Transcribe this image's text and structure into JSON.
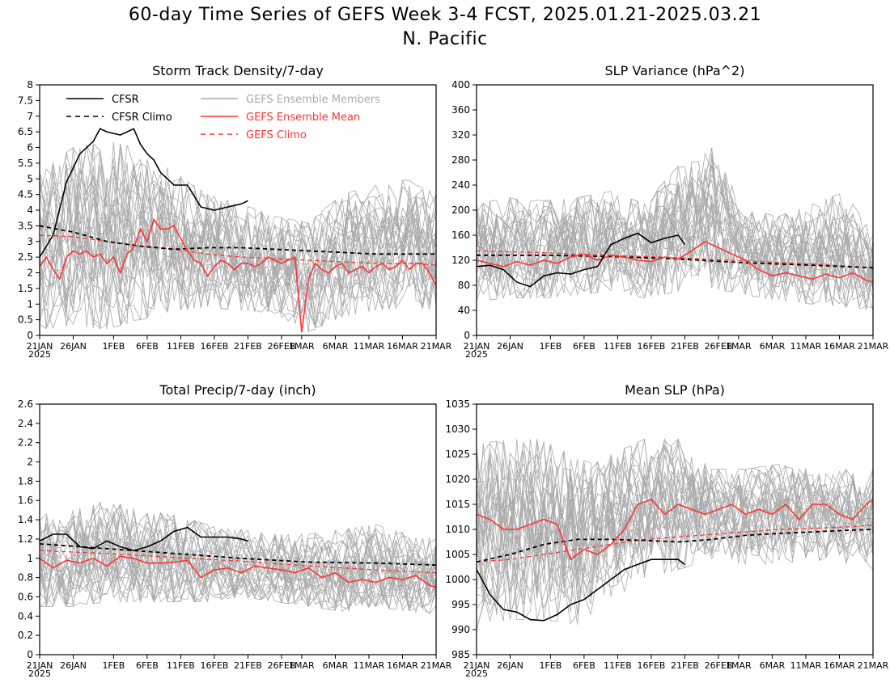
{
  "title_line1": "60-day Time Series of GEFS Week 3-4 FCST, 2025.01.21-2025.03.21",
  "title_line2": "N. Pacific",
  "colors": {
    "cfsr": "#000000",
    "members": "#aaaaaa",
    "gefs_mean": "#ff3333",
    "gefs_climo": "#ff3333"
  },
  "legend": {
    "cfsr": "CFSR",
    "cfsr_climo": "CFSR Climo",
    "members": "GEFS Ensemble Members",
    "gefs_mean": "GEFS Ensemble Mean",
    "gefs_climo": "GEFS Climo"
  },
  "x_axis": {
    "ticks": [
      {
        "day": 0,
        "label": "21JAN"
      },
      {
        "day": 5,
        "label": "26JAN"
      },
      {
        "day": 11,
        "label": "1FEB"
      },
      {
        "day": 16,
        "label": "6FEB"
      },
      {
        "day": 21,
        "label": "11FEB"
      },
      {
        "day": 26,
        "label": "16FEB"
      },
      {
        "day": 31,
        "label": "21FEB"
      },
      {
        "day": 36,
        "label": "26FEB"
      },
      {
        "day": 39,
        "label": "1MAR"
      },
      {
        "day": 44,
        "label": "6MAR"
      },
      {
        "day": 49,
        "label": "11MAR"
      },
      {
        "day": 54,
        "label": "16MAR"
      },
      {
        "day": 59,
        "label": "21MAR"
      }
    ],
    "year_label": "2025",
    "range": [
      0,
      59
    ]
  },
  "chart_data": [
    {
      "type": "line",
      "title": "Storm Track Density/7-day",
      "ylim": [
        0,
        8
      ],
      "yticks": [
        "0",
        "0.5",
        "1",
        "1.5",
        "2",
        "2.5",
        "3",
        "3.5",
        "4",
        "4.5",
        "5",
        "5.5",
        "6",
        "6.5",
        "7",
        "7.5",
        "8"
      ],
      "show_legend": true,
      "cfsr": {
        "x": [
          0,
          2,
          4,
          6,
          8,
          9,
          10,
          12,
          14,
          15,
          16,
          17,
          18,
          20,
          22,
          24,
          26,
          28,
          30,
          31
        ],
        "y": [
          2.5,
          3.2,
          4.9,
          5.8,
          6.2,
          6.6,
          6.5,
          6.4,
          6.6,
          6.1,
          5.8,
          5.6,
          5.2,
          4.8,
          4.8,
          4.1,
          4.0,
          4.1,
          4.2,
          4.3
        ]
      },
      "cfsr_climo": {
        "x": [
          0,
          5,
          10,
          15,
          20,
          25,
          30,
          35,
          40,
          45,
          50,
          55,
          59
        ],
        "y": [
          3.5,
          3.3,
          3.0,
          2.85,
          2.75,
          2.8,
          2.8,
          2.75,
          2.7,
          2.65,
          2.6,
          2.6,
          2.6
        ]
      },
      "gefs_mean": {
        "x": [
          0,
          1,
          2,
          3,
          4,
          5,
          6,
          7,
          8,
          9,
          10,
          11,
          12,
          13,
          14,
          15,
          16,
          17,
          18,
          19,
          20,
          21,
          22,
          23,
          24,
          25,
          26,
          27,
          28,
          29,
          30,
          31,
          32,
          33,
          34,
          35,
          36,
          37,
          38,
          39,
          40,
          41,
          42,
          43,
          44,
          45,
          46,
          47,
          48,
          49,
          50,
          51,
          52,
          53,
          54,
          55,
          56,
          57,
          58,
          59
        ],
        "y": [
          2.2,
          2.5,
          2.1,
          1.8,
          2.5,
          2.7,
          2.6,
          2.7,
          2.5,
          2.6,
          2.3,
          2.5,
          2.0,
          2.6,
          2.8,
          3.4,
          3.0,
          3.7,
          3.4,
          3.4,
          3.5,
          3.1,
          2.7,
          2.4,
          2.3,
          1.9,
          2.2,
          2.4,
          2.3,
          2.1,
          2.3,
          2.3,
          2.2,
          2.3,
          2.5,
          2.4,
          2.3,
          2.4,
          2.5,
          0.1,
          1.8,
          2.3,
          2.1,
          2.0,
          2.2,
          2.3,
          2.0,
          2.1,
          2.2,
          2.0,
          2.2,
          2.3,
          2.1,
          2.2,
          2.4,
          2.1,
          2.3,
          2.3,
          2.0,
          1.6
        ]
      },
      "gefs_climo": {
        "x": [
          0,
          5,
          10,
          15,
          20,
          25,
          30,
          35,
          40,
          45,
          50,
          55,
          59
        ],
        "y": [
          3.2,
          3.15,
          3.0,
          2.85,
          2.75,
          2.6,
          2.5,
          2.45,
          2.4,
          2.35,
          2.3,
          2.3,
          2.25
        ]
      },
      "members_spread": {
        "x": [
          0,
          5,
          10,
          15,
          20,
          25,
          30,
          35,
          40,
          45,
          50,
          55,
          59
        ],
        "low": [
          0.2,
          0.3,
          0.2,
          0.5,
          0.8,
          0.9,
          0.8,
          0.7,
          0.1,
          0.6,
          0.8,
          0.9,
          0.8
        ],
        "high": [
          5.2,
          6.0,
          6.2,
          6.0,
          5.2,
          4.5,
          4.2,
          3.8,
          3.6,
          4.5,
          4.8,
          5.0,
          4.5
        ]
      }
    },
    {
      "type": "line",
      "title": "SLP Variance (hPa^2)",
      "ylim": [
        0,
        400
      ],
      "yticks": [
        "0",
        "40",
        "80",
        "120",
        "160",
        "200",
        "240",
        "280",
        "320",
        "360",
        "400"
      ],
      "show_legend": false,
      "cfsr": {
        "x": [
          0,
          2,
          4,
          6,
          8,
          10,
          12,
          14,
          16,
          18,
          20,
          22,
          24,
          26,
          28,
          30,
          31
        ],
        "y": [
          110,
          112,
          105,
          85,
          78,
          95,
          100,
          98,
          105,
          110,
          145,
          155,
          163,
          148,
          155,
          160,
          145
        ]
      },
      "cfsr_climo": {
        "x": [
          0,
          10,
          20,
          30,
          40,
          50,
          59
        ],
        "y": [
          128,
          128,
          126,
          122,
          116,
          112,
          108
        ]
      },
      "gefs_mean": {
        "x": [
          0,
          2,
          4,
          6,
          8,
          10,
          12,
          14,
          16,
          18,
          20,
          22,
          24,
          26,
          28,
          30,
          32,
          34,
          36,
          38,
          40,
          42,
          44,
          46,
          48,
          50,
          52,
          54,
          56,
          58,
          59
        ],
        "y": [
          120,
          115,
          110,
          118,
          112,
          120,
          115,
          125,
          130,
          120,
          128,
          125,
          120,
          118,
          125,
          122,
          135,
          150,
          140,
          130,
          120,
          105,
          95,
          100,
          95,
          90,
          98,
          92,
          100,
          88,
          85
        ]
      },
      "gefs_climo": {
        "x": [
          0,
          10,
          20,
          30,
          40,
          50,
          59
        ],
        "y": [
          135,
          132,
          128,
          124,
          119,
          114,
          108
        ]
      },
      "members_spread": {
        "x": [
          0,
          5,
          10,
          15,
          20,
          25,
          30,
          35,
          40,
          45,
          50,
          55,
          59
        ],
        "low": [
          55,
          60,
          60,
          65,
          70,
          60,
          70,
          75,
          65,
          55,
          50,
          45,
          40
        ],
        "high": [
          210,
          220,
          215,
          220,
          230,
          210,
          270,
          300,
          200,
          190,
          210,
          230,
          160
        ]
      }
    },
    {
      "type": "line",
      "title": "Total Precip/7-day (inch)",
      "ylim": [
        0,
        2.6
      ],
      "yticks": [
        "0",
        "0.2",
        "0.4",
        "0.6",
        "0.8",
        "1",
        "1.2",
        "1.4",
        "1.6",
        "1.8",
        "2",
        "2.2",
        "2.4",
        "2.6"
      ],
      "show_legend": false,
      "cfsr": {
        "x": [
          0,
          2,
          4,
          6,
          8,
          10,
          12,
          14,
          16,
          18,
          20,
          22,
          24,
          26,
          28,
          30,
          31
        ],
        "y": [
          1.18,
          1.25,
          1.25,
          1.12,
          1.1,
          1.18,
          1.12,
          1.08,
          1.12,
          1.18,
          1.28,
          1.32,
          1.22,
          1.22,
          1.22,
          1.2,
          1.18
        ]
      },
      "cfsr_climo": {
        "x": [
          0,
          10,
          20,
          30,
          40,
          50,
          59
        ],
        "y": [
          1.15,
          1.1,
          1.05,
          1.0,
          0.96,
          0.95,
          0.93
        ]
      },
      "gefs_mean": {
        "x": [
          0,
          2,
          4,
          6,
          8,
          10,
          12,
          14,
          16,
          18,
          20,
          22,
          24,
          26,
          28,
          30,
          32,
          34,
          36,
          38,
          40,
          42,
          44,
          46,
          48,
          50,
          52,
          54,
          56,
          58,
          59
        ],
        "y": [
          1.0,
          0.9,
          0.98,
          0.95,
          1.0,
          0.92,
          1.02,
          1.0,
          0.95,
          0.95,
          0.96,
          0.98,
          0.8,
          0.88,
          0.9,
          0.85,
          0.92,
          0.9,
          0.88,
          0.85,
          0.9,
          0.8,
          0.85,
          0.75,
          0.78,
          0.75,
          0.8,
          0.78,
          0.82,
          0.72,
          0.7
        ]
      },
      "gefs_climo": {
        "x": [
          0,
          10,
          20,
          30,
          40,
          50,
          59
        ],
        "y": [
          1.08,
          1.05,
          1.01,
          0.97,
          0.92,
          0.88,
          0.85
        ]
      },
      "members_spread": {
        "x": [
          0,
          5,
          10,
          15,
          20,
          25,
          30,
          35,
          40,
          45,
          50,
          55,
          59
        ],
        "low": [
          0.5,
          0.5,
          0.55,
          0.55,
          0.55,
          0.55,
          0.6,
          0.55,
          0.5,
          0.45,
          0.5,
          0.45,
          0.4
        ],
        "high": [
          1.45,
          1.5,
          1.6,
          1.5,
          1.45,
          1.35,
          1.3,
          1.25,
          1.25,
          1.3,
          1.35,
          1.25,
          1.2
        ]
      }
    },
    {
      "type": "line",
      "title": "Mean SLP (hPa)",
      "ylim": [
        985,
        1035
      ],
      "yticks": [
        "985",
        "990",
        "995",
        "1000",
        "1005",
        "1010",
        "1015",
        "1020",
        "1025",
        "1030",
        "1035"
      ],
      "show_legend": false,
      "cfsr": {
        "x": [
          0,
          2,
          4,
          6,
          8,
          10,
          12,
          14,
          16,
          18,
          20,
          22,
          24,
          26,
          28,
          30,
          31
        ],
        "y": [
          1002,
          997,
          994,
          993.5,
          992,
          991.8,
          993,
          995,
          996,
          998,
          1000,
          1002,
          1003,
          1004,
          1004,
          1004,
          1003
        ]
      },
      "cfsr_climo": {
        "x": [
          0,
          5,
          10,
          15,
          20,
          25,
          30,
          35,
          40,
          45,
          50,
          55,
          59
        ],
        "y": [
          1003.5,
          1005,
          1007,
          1008,
          1008,
          1007.8,
          1007.5,
          1008,
          1008.8,
          1009.2,
          1009.5,
          1009.8,
          1010
        ]
      },
      "gefs_mean": {
        "x": [
          0,
          2,
          4,
          6,
          8,
          10,
          12,
          14,
          16,
          18,
          20,
          22,
          24,
          26,
          28,
          30,
          32,
          34,
          36,
          38,
          40,
          42,
          44,
          46,
          48,
          50,
          52,
          54,
          56,
          58,
          59
        ],
        "y": [
          1013,
          1012,
          1010,
          1010,
          1011,
          1012,
          1011,
          1004,
          1006,
          1005,
          1007,
          1010,
          1015,
          1016,
          1013,
          1015,
          1014,
          1013,
          1014,
          1015,
          1013,
          1014,
          1013,
          1015,
          1012,
          1015,
          1015,
          1013,
          1012,
          1015,
          1016
        ]
      },
      "gefs_climo": {
        "x": [
          0,
          5,
          10,
          15,
          20,
          25,
          30,
          35,
          40,
          45,
          50,
          55,
          59
        ],
        "y": [
          1003.5,
          1004,
          1005,
          1006,
          1007,
          1008,
          1008.5,
          1009,
          1009.5,
          1010,
          1010.2,
          1010.5,
          1010.8
        ]
      },
      "members_spread": {
        "x": [
          0,
          5,
          10,
          15,
          20,
          25,
          30,
          35,
          40,
          45,
          50,
          55,
          59
        ],
        "low": [
          990,
          992,
          992,
          991,
          996,
          1000,
          1002,
          1004,
          1003,
          1003,
          1004,
          1003,
          1002
        ],
        "high": [
          1027,
          1028,
          1028,
          1024,
          1025,
          1028,
          1028,
          1022,
          1022,
          1023,
          1022,
          1022,
          1022
        ]
      }
    }
  ]
}
